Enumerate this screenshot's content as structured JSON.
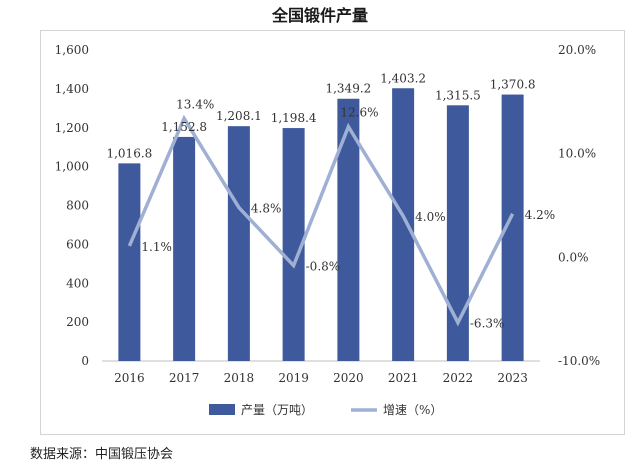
{
  "page": {
    "title": "全国锻件产量",
    "source": "数据来源：中国锻压协会"
  },
  "chart_data": {
    "type": "bar",
    "title": "全国锻件产量",
    "categories": [
      "2016",
      "2017",
      "2018",
      "2019",
      "2020",
      "2021",
      "2022",
      "2023"
    ],
    "series": [
      {
        "name": "产量（万吨）",
        "kind": "bar",
        "axis": "left",
        "color": "#3e5a9c",
        "values": [
          1016.8,
          1152.8,
          1208.1,
          1198.4,
          1349.2,
          1403.2,
          1315.5,
          1370.8
        ],
        "labels": [
          "1,016.8",
          "1,152.8",
          "1,208.1",
          "1,198.4",
          "1,349.2",
          "1,403.2",
          "1,315.5",
          "1,370.8"
        ]
      },
      {
        "name": "增速（%）",
        "kind": "line",
        "axis": "right",
        "color": "#9fb0d4",
        "values": [
          1.1,
          13.4,
          4.8,
          -0.8,
          12.6,
          4.0,
          -6.3,
          4.2
        ],
        "labels": [
          "1.1%",
          "13.4%",
          "4.8%",
          "-0.8%",
          "12.6%",
          "4.0%",
          "-6.3%",
          "4.2%"
        ]
      }
    ],
    "y_left": {
      "range": [
        0,
        1600
      ],
      "ticks": [
        0,
        200,
        400,
        600,
        800,
        1000,
        1200,
        1400,
        1600
      ],
      "tick_labels": [
        "0",
        "200",
        "400",
        "600",
        "800",
        "1,000",
        "1,200",
        "1,400",
        "1,600"
      ]
    },
    "y_right": {
      "range": [
        -10,
        20
      ],
      "ticks": [
        -10,
        0,
        10,
        20
      ],
      "tick_labels": [
        "-10.0%",
        "0.0%",
        "10.0%",
        "20.0%"
      ]
    },
    "grid": false,
    "legend_position": "bottom"
  }
}
